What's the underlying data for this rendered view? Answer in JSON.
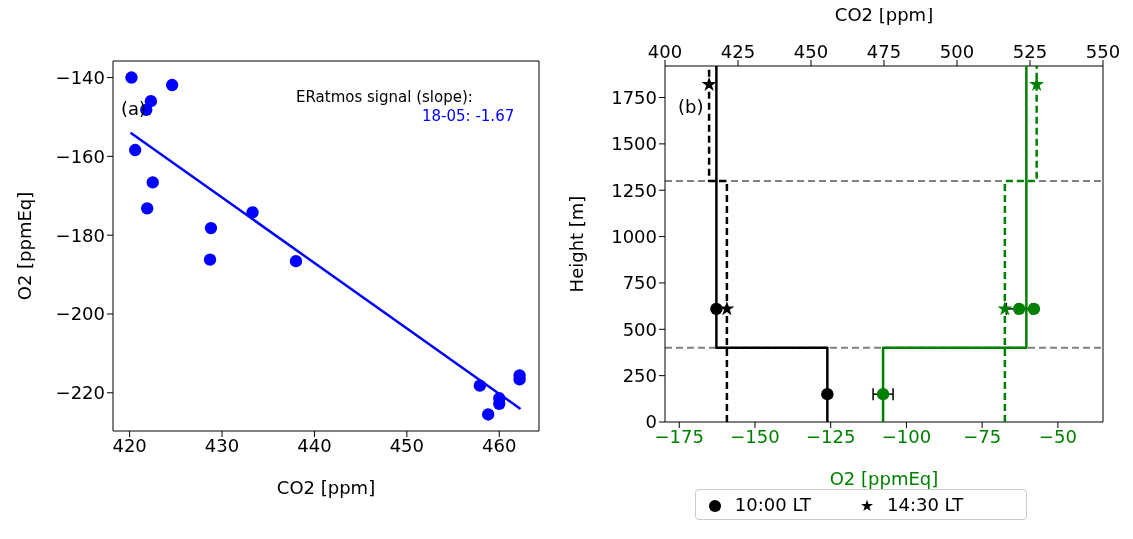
{
  "chart_data": [
    {
      "type": "scatter",
      "xlabel": "CO2 [ppm]",
      "ylabel": "O2 [ppmEq]",
      "xlim": [
        418.2,
        464.3
      ],
      "ylim": [
        -229.7,
        -135.8
      ],
      "xticks": [
        420,
        430,
        440,
        450,
        460
      ],
      "yticks": [
        -220,
        -200,
        -180,
        -160,
        -140
      ],
      "legend": false,
      "annotations": [
        "(a)",
        "ERatmos signal (slope):",
        "18-05: -1.67"
      ],
      "series": [
        {
          "color": "#0000ff",
          "marker": "circle",
          "x": [
            420.2,
            424.6,
            422.3,
            421.8,
            420.6,
            422.5,
            421.9,
            428.8,
            428.7,
            433.3,
            438.0,
            457.9,
            458.8,
            460.0,
            460.0,
            462.2,
            462.2
          ],
          "values": [
            -140.0,
            -141.9,
            -146.0,
            -148.2,
            -158.4,
            -166.6,
            -173.2,
            -178.2,
            -186.2,
            -174.2,
            -186.6,
            -218.2,
            -225.5,
            -221.4,
            -222.8,
            -215.6,
            -216.6
          ]
        },
        {
          "type": "line",
          "color": "#0000ff",
          "line_style": "solid",
          "x": [
            420.1,
            462.3
          ],
          "values": [
            -154.0,
            -224.1
          ]
        }
      ]
    },
    {
      "type": "line",
      "xlabel": "O2 [ppmEq]",
      "x2label": "CO2 [ppm]",
      "ylabel": "Height [m]",
      "xlim": [
        -179.7,
        -35.1
      ],
      "xticks": [
        -175,
        -150,
        -125,
        -100,
        -75,
        -50
      ],
      "x2lim": [
        400,
        550
      ],
      "x2ticks": [
        400,
        425,
        450,
        475,
        500,
        525,
        550
      ],
      "ylim": [
        0,
        1920
      ],
      "yticks": [
        0,
        250,
        500,
        750,
        1000,
        1250,
        1500,
        1750
      ],
      "legend": "bottom",
      "annotations": [
        "(b)"
      ],
      "ref_lines": [
        {
          "axis": "y",
          "value": 400,
          "color": "#808080",
          "line_style": "dashed"
        },
        {
          "axis": "y",
          "value": 1300,
          "color": "#808080",
          "line_style": "dashed"
        }
      ],
      "series": [
        {
          "axis": "x2",
          "color": "#000000",
          "line_style": "solid",
          "x": [
            455.6,
            455.6,
            417.6,
            417.6
          ],
          "values": [
            0,
            400,
            400,
            1920
          ]
        },
        {
          "axis": "x2",
          "color": "#000000",
          "line_style": "dashed",
          "x": [
            421.2,
            421.2,
            415.1,
            415.1
          ],
          "values": [
            0,
            1300,
            1300,
            1920
          ]
        },
        {
          "color": "#008000",
          "line_style": "solid",
          "x": [
            -107.7,
            -107.7,
            -60.4,
            -60.4
          ],
          "values": [
            0,
            400,
            400,
            1920
          ]
        },
        {
          "color": "#008000",
          "line_style": "dashed",
          "x": [
            -67.5,
            -67.5,
            -57.0,
            -57.0
          ],
          "values": [
            0,
            1300,
            1300,
            1920
          ]
        },
        {
          "type": "scatter",
          "axis": "x2",
          "name": "10:00 LT",
          "color": "#000000",
          "marker": "circle",
          "x": [
            455.6,
            417.6
          ],
          "values": [
            150,
            610
          ]
        },
        {
          "type": "scatter",
          "axis": "x2",
          "name": "14:30 LT",
          "color": "#000000",
          "marker": "star",
          "x": [
            421.2,
            415.1
          ],
          "values": [
            610,
            1820
          ]
        },
        {
          "type": "scatter",
          "color": "#008000",
          "marker": "circle",
          "x": [
            -107.7,
            -62.8,
            -57.9
          ],
          "values": [
            150,
            610,
            610
          ],
          "xerrors": [
            3.3,
            4.2,
            null
          ]
        },
        {
          "type": "scatter",
          "color": "#008000",
          "marker": "star",
          "x": [
            -67.5,
            -57.0
          ],
          "values": [
            610,
            1820
          ]
        }
      ]
    }
  ]
}
